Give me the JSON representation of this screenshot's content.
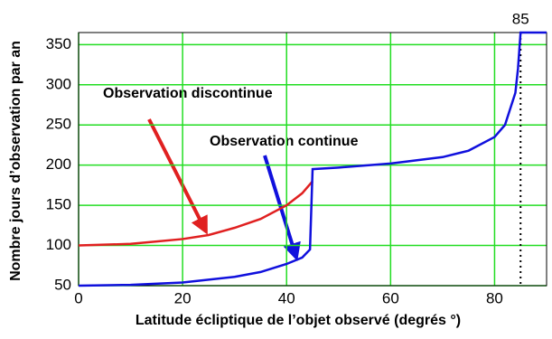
{
  "chart_data": {
    "type": "line",
    "xlabel": "Latitude écliptique de l’objet observé (degrés °)",
    "ylabel": "Nombre jours d’observation par an",
    "xlim": [
      0,
      90
    ],
    "ylim": [
      50,
      365
    ],
    "xticks": [
      0,
      20,
      40,
      60,
      80
    ],
    "yticks": [
      50,
      100,
      150,
      200,
      250,
      300,
      350
    ],
    "grid": true,
    "grid_color": "#22dd22",
    "vline": 85,
    "series": [
      {
        "name": "Observation discontinue",
        "color": "#e02020",
        "x": [
          0,
          5,
          10,
          15,
          20,
          25,
          30,
          35,
          40,
          43,
          45
        ],
        "values": [
          100,
          101,
          102,
          105,
          108,
          113,
          122,
          133,
          150,
          165,
          180
        ]
      },
      {
        "name": "Observation continue",
        "color": "#1010dd",
        "x": [
          0,
          10,
          20,
          30,
          35,
          40,
          43,
          44.5,
          45,
          50,
          60,
          70,
          75,
          80,
          82,
          84,
          84.5,
          85,
          90
        ],
        "values": [
          50,
          51,
          54,
          61,
          67,
          77,
          85,
          95,
          195,
          197,
          202,
          210,
          218,
          235,
          250,
          290,
          320,
          365,
          365
        ]
      }
    ]
  }
}
